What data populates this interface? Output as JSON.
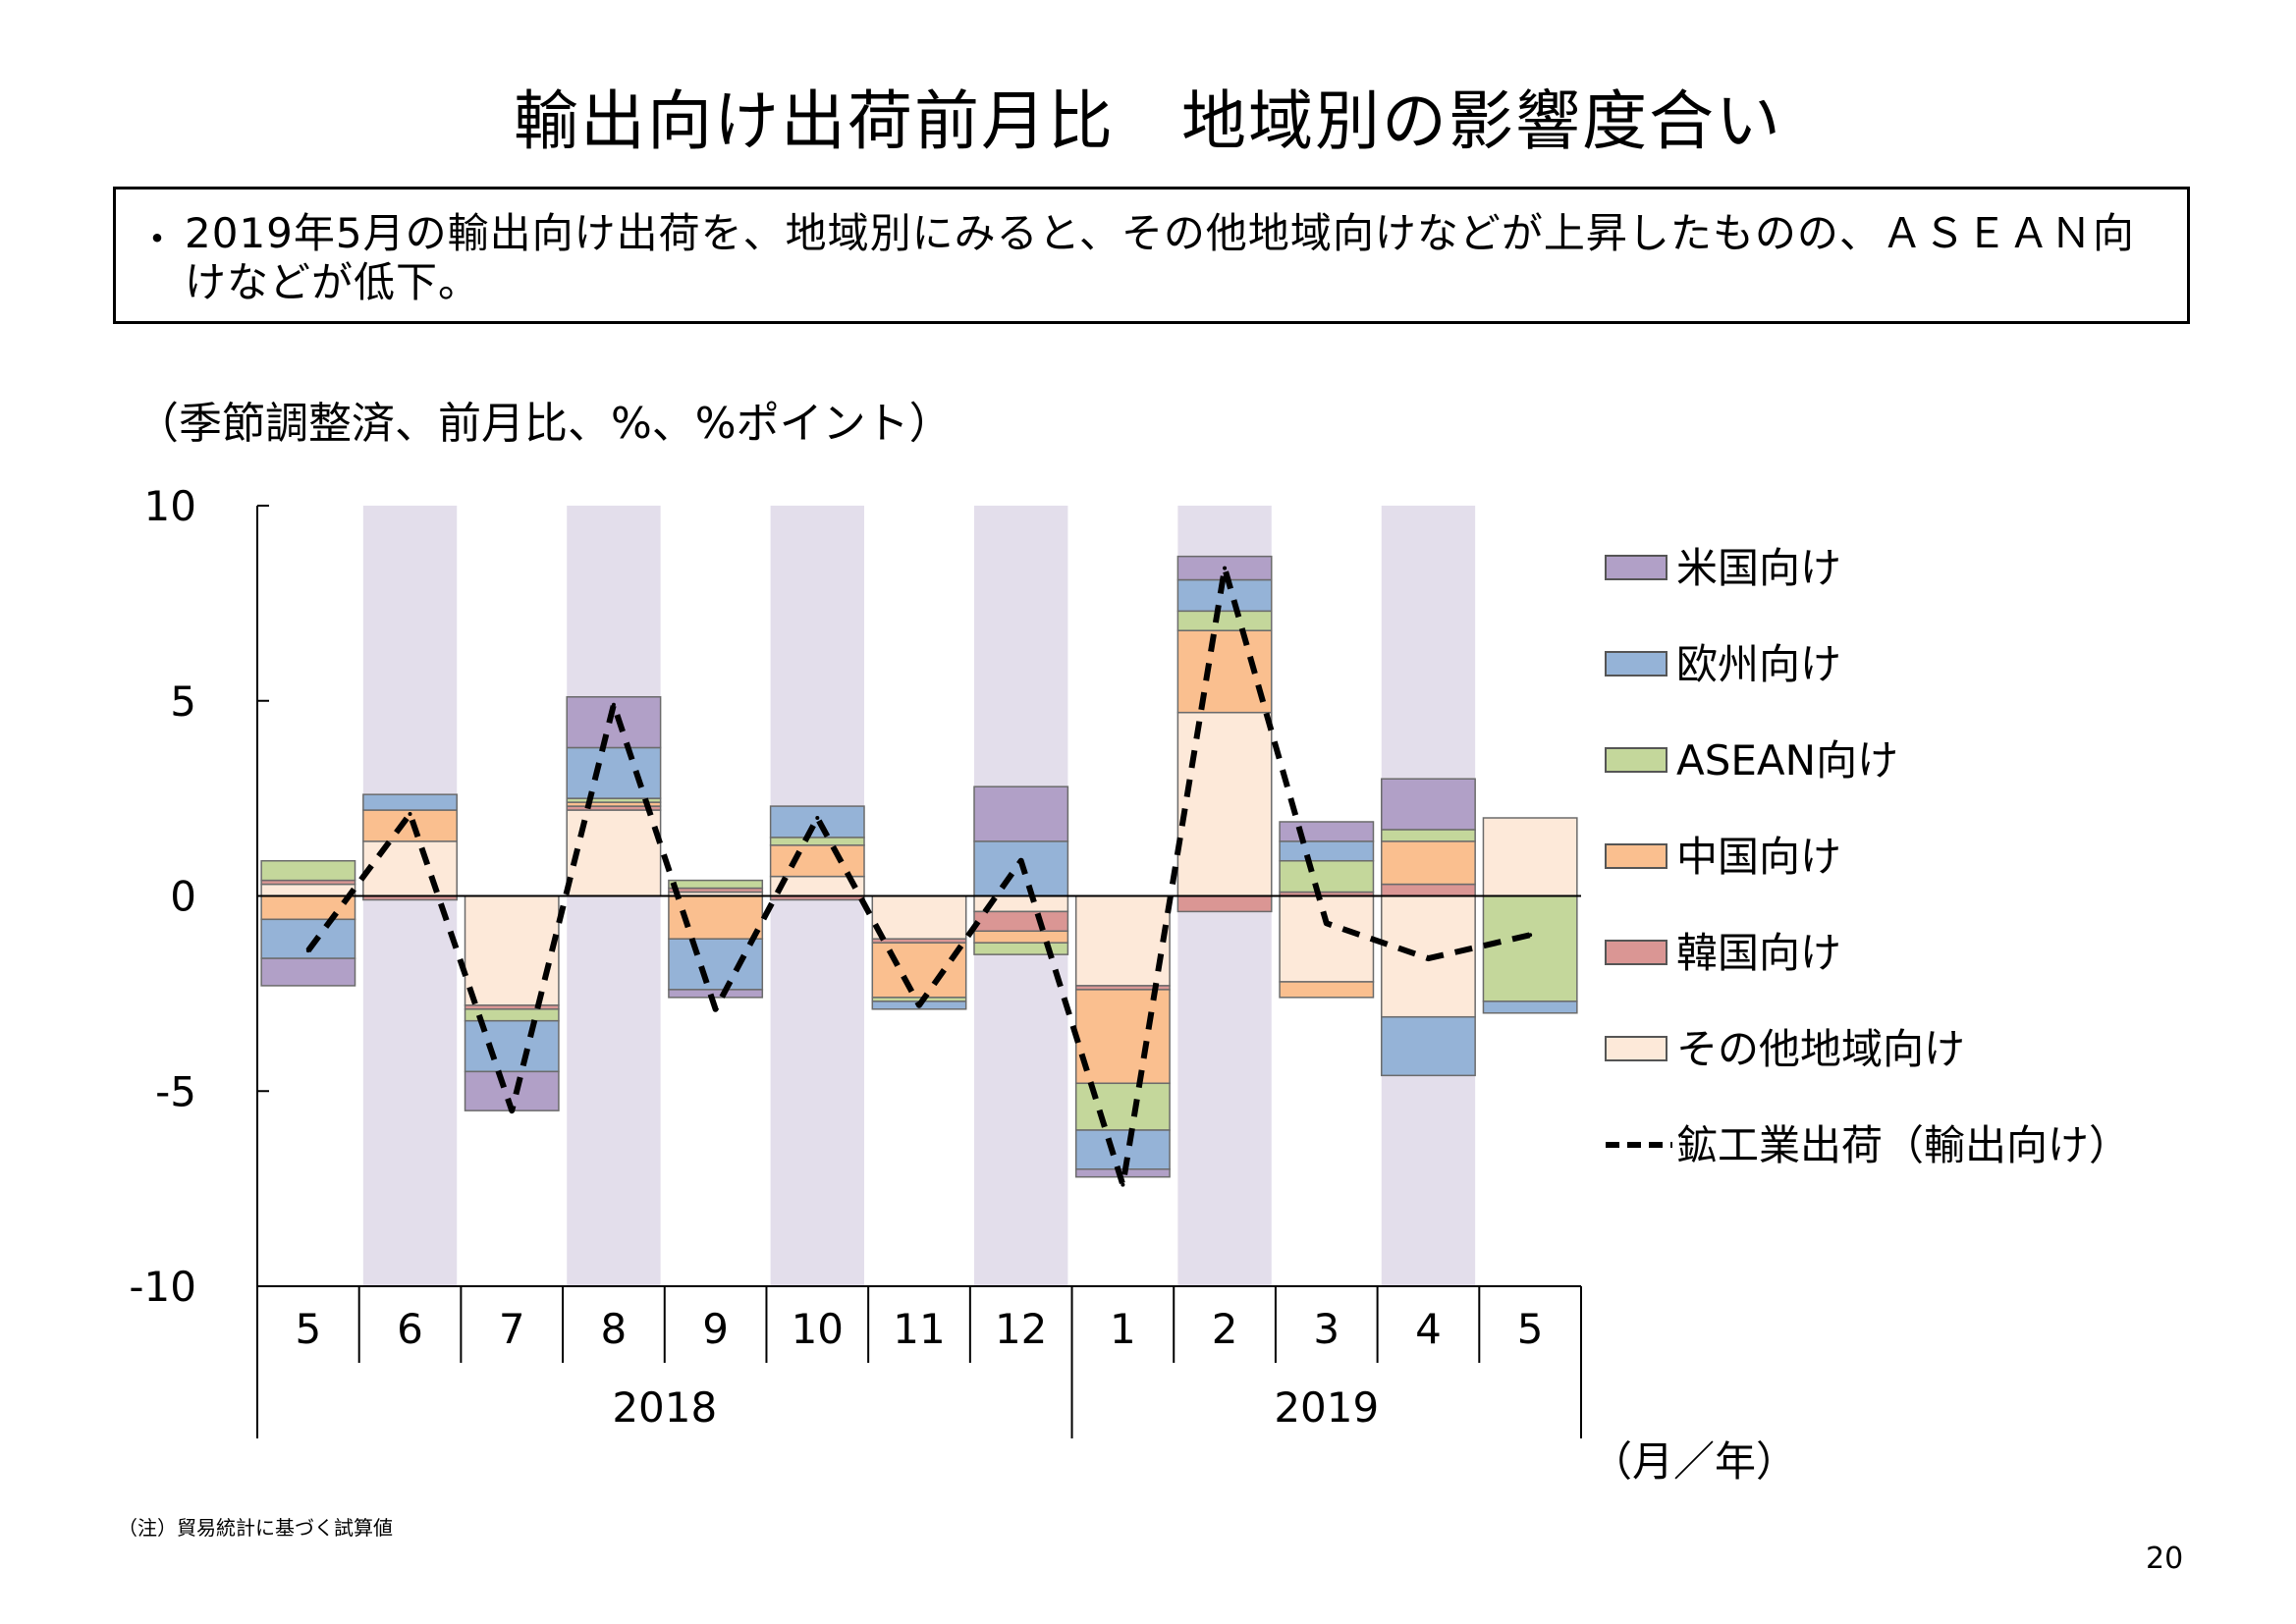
{
  "title": "輸出向け出荷前月比　地域別の影響度合い",
  "summary": {
    "bullet": "・",
    "text": "2019年5月の輸出向け出荷を、地域別にみると、その他地域向けなどが上昇したものの、ＡＳＥＡＮ向けなどが低下。"
  },
  "unit_label": "（季節調整済、前月比、%、%ポイント）",
  "note": "（注）貿易統計に基づく試算値",
  "page_number": "20",
  "chart_data": {
    "type": "bar",
    "stacked": true,
    "ylim": [
      -10,
      10
    ],
    "yticks": [
      10,
      5,
      0,
      -5,
      -10
    ],
    "ytick_labels": [
      "10",
      "5",
      "0",
      "-5",
      "-10"
    ],
    "categories": [
      "5",
      "6",
      "7",
      "8",
      "9",
      "10",
      "11",
      "12",
      "1",
      "2",
      "3",
      "4",
      "5"
    ],
    "year_groups": [
      {
        "label": "2018",
        "start": 0,
        "end": 7
      },
      {
        "label": "2019",
        "start": 8,
        "end": 12
      }
    ],
    "x_unit_label": "（月／年）",
    "shaded_categories": [
      1,
      3,
      5,
      7,
      9,
      11
    ],
    "shade_color": "#e3deeb",
    "series": [
      {
        "name": "その他地域向け",
        "color": "#fde9d9",
        "values": [
          0.3,
          1.4,
          -2.8,
          2.2,
          0.1,
          0.5,
          -1.1,
          -0.4,
          -2.3,
          4.7,
          -2.2,
          -3.1,
          2.0
        ]
      },
      {
        "name": "韓国向け",
        "color": "#da9694",
        "values": [
          0.1,
          -0.1,
          -0.1,
          0.1,
          0.1,
          -0.1,
          -0.1,
          -0.5,
          -0.1,
          -0.4,
          0.1,
          0.3,
          0.0
        ]
      },
      {
        "name": "中国向け",
        "color": "#fabf8f",
        "values": [
          -0.6,
          0.8,
          0.0,
          0.1,
          -1.1,
          0.8,
          -1.4,
          -0.3,
          -2.4,
          2.1,
          -0.4,
          1.1,
          0.0
        ]
      },
      {
        "name": "ASEAN向け",
        "color": "#c4d79b",
        "values": [
          0.5,
          0.0,
          -0.3,
          0.1,
          0.2,
          0.2,
          -0.1,
          -0.3,
          -1.2,
          0.5,
          0.8,
          0.3,
          -2.7
        ]
      },
      {
        "name": "欧州向け",
        "color": "#95b3d7",
        "values": [
          -1.0,
          0.4,
          -1.3,
          1.3,
          -1.3,
          0.8,
          -0.2,
          1.4,
          -1.0,
          0.8,
          0.5,
          -1.5,
          -0.3
        ]
      },
      {
        "name": "米国向け",
        "color": "#b1a0c7",
        "values": [
          -0.7,
          0.0,
          -1.0,
          1.3,
          -0.2,
          0.0,
          0.0,
          1.4,
          -0.2,
          0.6,
          0.5,
          1.3,
          0.0
        ]
      }
    ],
    "line": {
      "name": "鉱工業出荷（輸出向け）",
      "color": "#000000",
      "dashed": true,
      "values": [
        -1.4,
        2.1,
        -5.5,
        4.9,
        -2.9,
        2.0,
        -2.8,
        0.9,
        -7.4,
        8.4,
        -0.7,
        -1.6,
        -1.0
      ]
    },
    "legend": {
      "position": "right",
      "entries": [
        {
          "name": "米国向け",
          "color": "#b1a0c7",
          "kind": "box"
        },
        {
          "name": "欧州向け",
          "color": "#95b3d7",
          "kind": "box"
        },
        {
          "name": "ASEAN向け",
          "color": "#c4d79b",
          "kind": "box"
        },
        {
          "name": "中国向け",
          "color": "#fabf8f",
          "kind": "box"
        },
        {
          "name": "韓国向け",
          "color": "#da9694",
          "kind": "box"
        },
        {
          "name": "その他地域向け",
          "color": "#fde9d9",
          "kind": "box"
        },
        {
          "name": "鉱工業出荷（輸出向け）",
          "color": "#000000",
          "kind": "dash"
        }
      ]
    }
  }
}
